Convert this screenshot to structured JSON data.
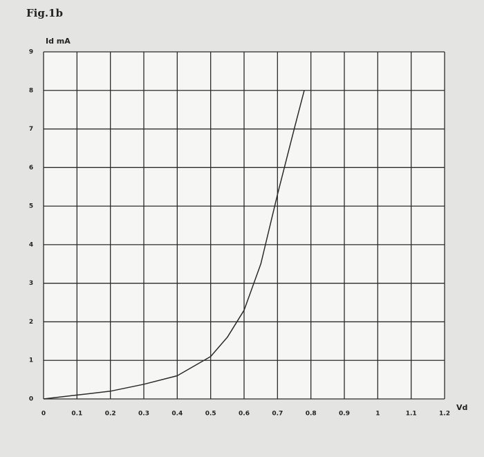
{
  "chart_data": {
    "type": "line",
    "title": "Fig.1b",
    "y_label": "Id mA",
    "x_label": "Vd",
    "x": [
      0,
      0.1,
      0.2,
      0.3,
      0.4,
      0.5,
      0.55,
      0.6,
      0.65,
      0.7,
      0.75,
      0.78
    ],
    "values": [
      0,
      0.1,
      0.2,
      0.38,
      0.6,
      1.1,
      1.6,
      2.3,
      3.5,
      5.3,
      7.0,
      8.0
    ],
    "color": "#2a2a2a",
    "xlim": [
      0,
      1.2
    ],
    "xticks": [
      0,
      0.1,
      0.2,
      0.3,
      0.4,
      0.5,
      0.6,
      0.7,
      0.8,
      0.9,
      1,
      1.1,
      1.2
    ],
    "ylim": [
      0,
      9
    ],
    "yticks": [
      0,
      1,
      2,
      3,
      4,
      5,
      6,
      7,
      8,
      9
    ],
    "grid": true
  }
}
